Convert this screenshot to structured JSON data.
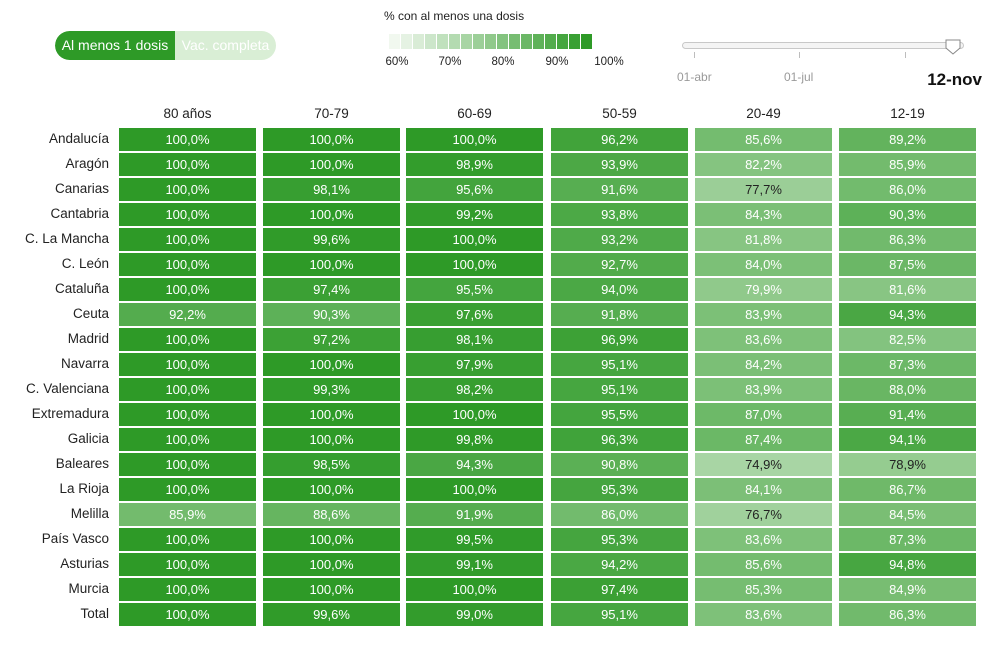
{
  "toggle": {
    "options": [
      "Al menos 1 dosis",
      "Vac. completa"
    ],
    "selected": "Al menos 1 dosis"
  },
  "legend": {
    "title": "% con al menos una dosis",
    "ticks": [
      "60%",
      "70%",
      "80%",
      "90%",
      "100%"
    ]
  },
  "slider": {
    "labels": [
      "01-abr",
      "01-jul"
    ],
    "current_date": "12-nov",
    "position_fraction": 0.97
  },
  "colors": {
    "scale_low": "#f1f8ef",
    "scale_high": "#2e9a27"
  },
  "chart_data": {
    "type": "heatmap",
    "columns": [
      "80 años",
      "70-79",
      "60-69",
      "50-59",
      "20-49",
      "12-19"
    ],
    "rows": [
      "Andalucía",
      "Aragón",
      "Canarias",
      "Cantabria",
      "C. La Mancha",
      "C. León",
      "Cataluña",
      "Ceuta",
      "Madrid",
      "Navarra",
      "C. Valenciana",
      "Extremadura",
      "Galicia",
      "Baleares",
      "La Rioja",
      "Melilla",
      "País Vasco",
      "Asturias",
      "Murcia",
      "Total"
    ],
    "values": [
      [
        "100,0%",
        "100,0%",
        "100,0%",
        "96,2%",
        "85,6%",
        "89,2%"
      ],
      [
        "100,0%",
        "100,0%",
        "98,9%",
        "93,9%",
        "82,2%",
        "85,9%"
      ],
      [
        "100,0%",
        "98,1%",
        "95,6%",
        "91,6%",
        "77,7%",
        "86,0%"
      ],
      [
        "100,0%",
        "100,0%",
        "99,2%",
        "93,8%",
        "84,3%",
        "90,3%"
      ],
      [
        "100,0%",
        "99,6%",
        "100,0%",
        "93,2%",
        "81,8%",
        "86,3%"
      ],
      [
        "100,0%",
        "100,0%",
        "100,0%",
        "92,7%",
        "84,0%",
        "87,5%"
      ],
      [
        "100,0%",
        "97,4%",
        "95,5%",
        "94,0%",
        "79,9%",
        "81,6%"
      ],
      [
        "92,2%",
        "90,3%",
        "97,6%",
        "91,8%",
        "83,9%",
        "94,3%"
      ],
      [
        "100,0%",
        "97,2%",
        "98,1%",
        "96,9%",
        "83,6%",
        "82,5%"
      ],
      [
        "100,0%",
        "100,0%",
        "97,9%",
        "95,1%",
        "84,2%",
        "87,3%"
      ],
      [
        "100,0%",
        "99,3%",
        "98,2%",
        "95,1%",
        "83,9%",
        "88,0%"
      ],
      [
        "100,0%",
        "100,0%",
        "100,0%",
        "95,5%",
        "87,0%",
        "91,4%"
      ],
      [
        "100,0%",
        "100,0%",
        "99,8%",
        "96,3%",
        "87,4%",
        "94,1%"
      ],
      [
        "100,0%",
        "98,5%",
        "94,3%",
        "90,8%",
        "74,9%",
        "78,9%"
      ],
      [
        "100,0%",
        "100,0%",
        "100,0%",
        "95,3%",
        "84,1%",
        "86,7%"
      ],
      [
        "85,9%",
        "88,6%",
        "91,9%",
        "86,0%",
        "76,7%",
        "84,5%"
      ],
      [
        "100,0%",
        "100,0%",
        "99,5%",
        "95,3%",
        "83,6%",
        "87,3%"
      ],
      [
        "100,0%",
        "100,0%",
        "99,1%",
        "94,2%",
        "85,6%",
        "94,8%"
      ],
      [
        "100,0%",
        "100,0%",
        "100,0%",
        "97,4%",
        "85,3%",
        "84,9%"
      ],
      [
        "100,0%",
        "99,6%",
        "99,0%",
        "95,1%",
        "83,6%",
        "86,3%"
      ]
    ],
    "color_domain": [
      60,
      100
    ],
    "grid": false
  }
}
